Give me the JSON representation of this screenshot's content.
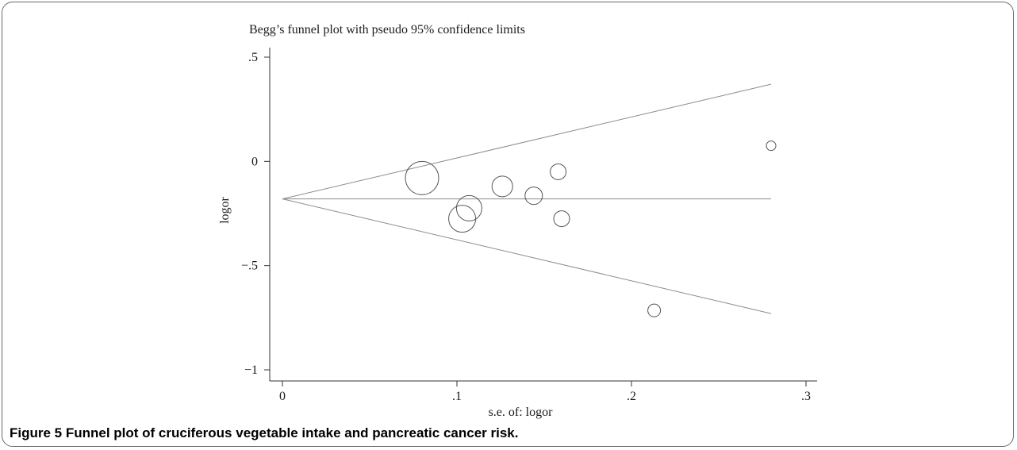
{
  "figure": {
    "caption": "Figure 5 Funnel plot of cruciferous vegetable intake and pancreatic cancer risk."
  },
  "chart_data": {
    "type": "scatter",
    "title": "Begg’s funnel plot with pseudo 95% confidence limits",
    "xlabel": "s.e. of: logor",
    "ylabel": "logor",
    "xlim": [
      0,
      0.3
    ],
    "ylim": [
      -1,
      0.5
    ],
    "xticks": [
      0,
      0.1,
      0.2,
      0.3
    ],
    "xtick_labels": [
      "0",
      ".1",
      ".2",
      ".3"
    ],
    "yticks": [
      0.5,
      0,
      -0.5,
      -1
    ],
    "ytick_labels": [
      ".5",
      "0",
      "−.5",
      "−1"
    ],
    "grid": false,
    "pooled_estimate": -0.18,
    "confidence_limits": {
      "lower": [
        {
          "x": 0,
          "y": -0.18
        },
        {
          "x": 0.28,
          "y": -0.73
        }
      ],
      "upper": [
        {
          "x": 0,
          "y": -0.18
        },
        {
          "x": 0.28,
          "y": 0.37
        }
      ]
    },
    "points": [
      {
        "x": 0.08,
        "y": -0.08,
        "size": 21
      },
      {
        "x": 0.103,
        "y": -0.275,
        "size": 17
      },
      {
        "x": 0.107,
        "y": -0.225,
        "size": 16
      },
      {
        "x": 0.126,
        "y": -0.12,
        "size": 13
      },
      {
        "x": 0.144,
        "y": -0.165,
        "size": 11
      },
      {
        "x": 0.158,
        "y": -0.05,
        "size": 10
      },
      {
        "x": 0.16,
        "y": -0.275,
        "size": 10
      },
      {
        "x": 0.213,
        "y": -0.715,
        "size": 8
      },
      {
        "x": 0.28,
        "y": 0.075,
        "size": 6
      }
    ],
    "colors": {
      "marker": "#555555",
      "lines": "#8c8c8c",
      "axis": "#333333"
    }
  }
}
